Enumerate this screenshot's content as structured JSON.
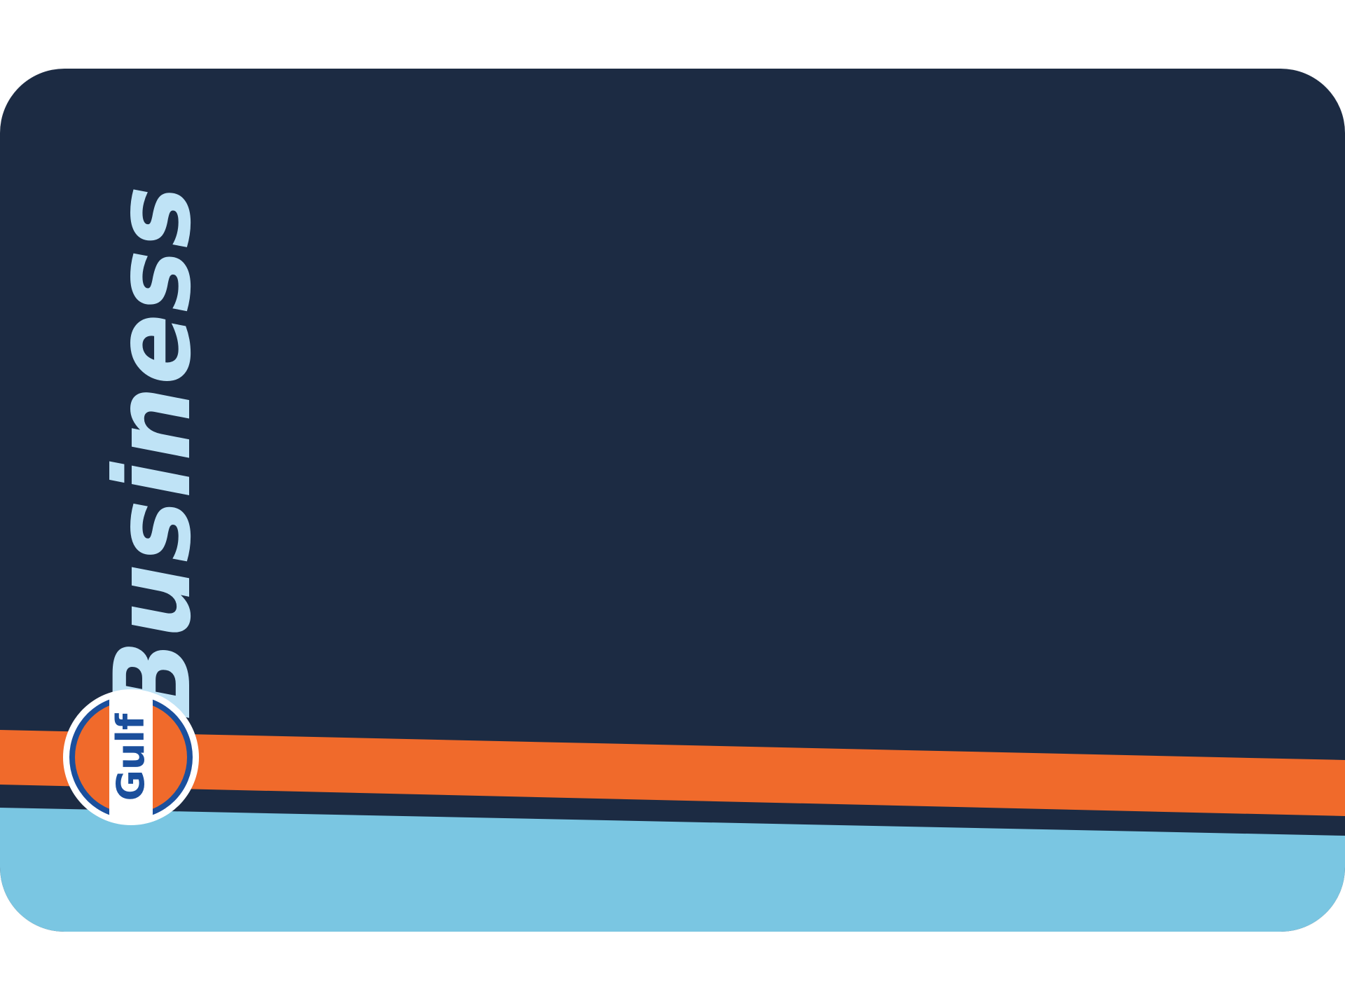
{
  "card": {
    "brand_word": "Business",
    "logo_text": "Gulf"
  },
  "colors": {
    "navy": "#1c2b43",
    "orange": "#f06a2b",
    "light_blue": "#7ac6e2",
    "lettering": "#bfe3f6",
    "logo_blue": "#1b4f9c",
    "logo_white": "#ffffff",
    "logo_orange": "#f06a2b"
  },
  "icons": {
    "logo": "gulf-roundel-logo"
  }
}
